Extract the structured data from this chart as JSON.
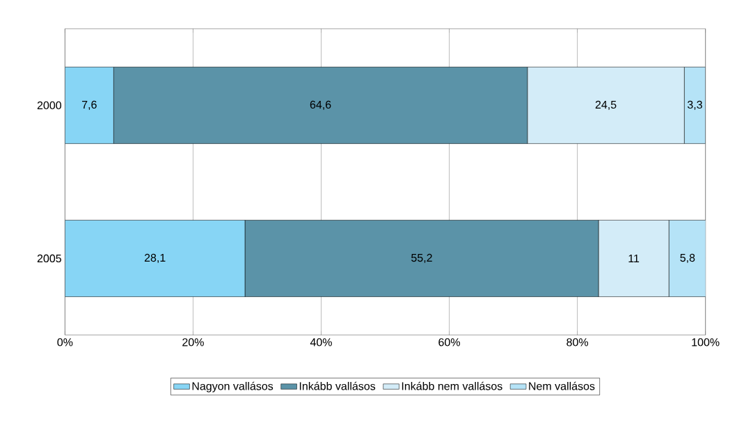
{
  "chart_data": {
    "type": "bar",
    "orientation": "horizontal",
    "stacked": true,
    "categories": [
      "2000",
      "2005"
    ],
    "series": [
      {
        "name": "Nagyon vallásos",
        "color": "#87d5f5",
        "values": [
          7.6,
          28.1
        ],
        "value_labels": [
          "7,6",
          "28,1"
        ]
      },
      {
        "name": "Inkább vallásos",
        "color": "#5b93a8",
        "values": [
          64.6,
          55.2
        ],
        "value_labels": [
          "64,6",
          "55,2"
        ]
      },
      {
        "name": "Inkább nem vallásos",
        "color": "#d3ecf8",
        "values": [
          24.5,
          11
        ],
        "value_labels": [
          "24,5",
          "11"
        ]
      },
      {
        "name": "Nem vallásos",
        "color": "#b5e3f7",
        "values": [
          3.3,
          5.8
        ],
        "value_labels": [
          "3,3",
          "5,8"
        ]
      }
    ],
    "xlim": [
      0,
      100
    ],
    "xticks": [
      {
        "value": 0,
        "label": "0%"
      },
      {
        "value": 20,
        "label": "20%"
      },
      {
        "value": 40,
        "label": "40%"
      },
      {
        "value": 60,
        "label": "60%"
      },
      {
        "value": 80,
        "label": "80%"
      },
      {
        "value": 100,
        "label": "100%"
      }
    ],
    "grid": "x",
    "legend": "bottom"
  }
}
